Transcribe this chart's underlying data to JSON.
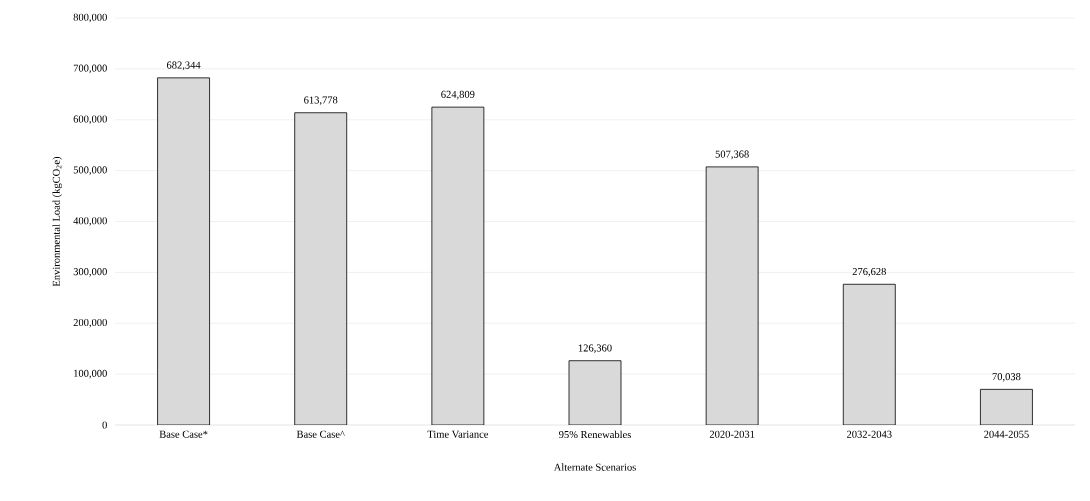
{
  "chart_data": {
    "type": "bar",
    "xlabel": "Alternate Scenarios",
    "ylabel": "Environmental Load (kgCO$_{2}$e)",
    "categories": [
      "Base Case*",
      "Base Case^",
      "Time Variance",
      "95% Renewables",
      "2020-2031",
      "2032-2043",
      "2044-2055"
    ],
    "values": [
      682344,
      613778,
      624809,
      126360,
      507368,
      276628,
      70038
    ],
    "value_labels": [
      "682,344",
      "613,778",
      "624,809",
      "126,360",
      "507,368",
      "276,628",
      "70,038"
    ],
    "color": "#d9d9d9",
    "ylim": [
      0,
      800000
    ],
    "yticks": [
      0,
      {
        "value": 100000,
        "label": "100,000"
      },
      {
        "value": 200000,
        "label": "200,000"
      },
      {
        "value": 300000,
        "label": "300,000"
      },
      {
        "value": 400000,
        "label": "400,000"
      },
      {
        "value": 500000,
        "label": "500,000"
      },
      {
        "value": 600000,
        "label": "600,000"
      },
      {
        "value": 700000,
        "label": "700,000"
      },
      {
        "value": 800000,
        "label": "800,000"
      }
    ],
    "grid": "y"
  }
}
